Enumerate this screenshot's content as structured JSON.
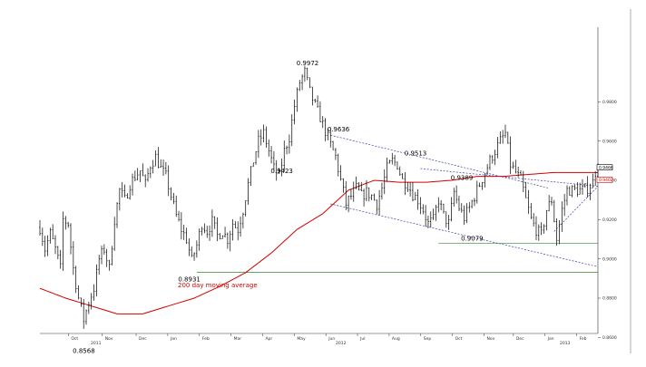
{
  "chart_data": {
    "type": "line",
    "title": "",
    "xlabel": "",
    "ylabel": "",
    "ylim": [
      0.862,
      1.018
    ],
    "y_ticks": [
      "0.9800",
      "0.9600",
      "0.9400",
      "0.9200",
      "0.9000",
      "0.8800",
      "0.8600"
    ],
    "y_tick_values": [
      0.98,
      0.96,
      0.94,
      0.92,
      0.9,
      0.88,
      0.86
    ],
    "month_labels": [
      "Oct",
      "Nov",
      "Dec",
      "Jan",
      "Feb",
      "Mar",
      "Apr",
      "May",
      "Jun",
      "Jul",
      "Aug",
      "Sep",
      "Oct",
      "Nov",
      "Dec",
      "Jan",
      "Feb"
    ],
    "year_labels": [
      "2011",
      "2012",
      "2013"
    ],
    "price_anchors": {
      "x": [
        0,
        2,
        4,
        6,
        8,
        9,
        11,
        13,
        15,
        17,
        19,
        21,
        23,
        25,
        27,
        29,
        31,
        33,
        35,
        37,
        39,
        41,
        43,
        45,
        47,
        49,
        51,
        53,
        55,
        57,
        59,
        61,
        63,
        65,
        67,
        69,
        71,
        73,
        75,
        77,
        79,
        81,
        83,
        85,
        87,
        89,
        91,
        93,
        95,
        97,
        99,
        101,
        103,
        105,
        107,
        109,
        111,
        113,
        115,
        117,
        119,
        121,
        123,
        125,
        127,
        129,
        131,
        133,
        135,
        137,
        139,
        141,
        143,
        145,
        147,
        149,
        151,
        153,
        155,
        157,
        159,
        161,
        163,
        165,
        167,
        169,
        171,
        173,
        175,
        177,
        179,
        181,
        183,
        185,
        187,
        189,
        191,
        193,
        195,
        197,
        199,
        201,
        203,
        205,
        207,
        209,
        211,
        213,
        215,
        217
      ],
      "y": [
        0.916,
        0.905,
        0.913,
        0.905,
        0.895,
        0.92,
        0.918,
        0.895,
        0.88,
        0.869,
        0.878,
        0.885,
        0.9,
        0.905,
        0.895,
        0.92,
        0.935,
        0.93,
        0.938,
        0.942,
        0.945,
        0.938,
        0.948,
        0.952,
        0.946,
        0.942,
        0.932,
        0.922,
        0.915,
        0.91,
        0.899,
        0.907,
        0.918,
        0.914,
        0.919,
        0.912,
        0.914,
        0.91,
        0.918,
        0.915,
        0.925,
        0.938,
        0.95,
        0.96,
        0.964,
        0.955,
        0.946,
        0.942,
        0.955,
        0.962,
        0.978,
        0.99,
        0.995,
        0.985,
        0.978,
        0.972,
        0.965,
        0.958,
        0.952,
        0.94,
        0.928,
        0.932,
        0.936,
        0.932,
        0.934,
        0.932,
        0.928,
        0.936,
        0.946,
        0.95,
        0.948,
        0.94,
        0.938,
        0.933,
        0.93,
        0.925,
        0.918,
        0.92,
        0.93,
        0.922,
        0.918,
        0.934,
        0.926,
        0.921,
        0.926,
        0.932,
        0.938,
        0.944,
        0.95,
        0.955,
        0.96,
        0.964,
        0.948,
        0.944,
        0.94,
        0.93,
        0.92,
        0.915,
        0.912,
        0.925,
        0.93,
        0.91,
        0.925,
        0.935,
        0.935,
        0.935,
        0.935,
        0.936,
        0.939,
        0.95
      ]
    },
    "ma200_anchors": {
      "x": [
        0,
        10,
        20,
        30,
        40,
        50,
        60,
        70,
        80,
        90,
        100,
        110,
        120,
        130,
        140,
        150,
        160,
        170,
        180,
        190,
        200,
        210,
        217
      ],
      "y": [
        0.885,
        0.88,
        0.876,
        0.872,
        0.872,
        0.876,
        0.88,
        0.886,
        0.893,
        0.903,
        0.915,
        0.923,
        0.935,
        0.94,
        0.939,
        0.939,
        0.94,
        0.942,
        0.942,
        0.943,
        0.944,
        0.944,
        0.944
      ]
    },
    "annotations": [
      {
        "label": "0.9972",
        "x": 104,
        "y": 0.9972
      },
      {
        "label": "0.9636",
        "x": 116,
        "y": 0.9636
      },
      {
        "label": "0.9513",
        "x": 146,
        "y": 0.9513
      },
      {
        "label": "0.9423",
        "x": 94,
        "y": 0.9423
      },
      {
        "label": "0.9389",
        "x": 164,
        "y": 0.9389
      },
      {
        "label": "0.9079",
        "x": 168,
        "y": 0.9079
      },
      {
        "label": "0.8931",
        "x": 58,
        "y": 0.8931
      },
      {
        "label": "0.8568",
        "x": 17,
        "y": 0.8568
      }
    ],
    "trendlines": [
      {
        "x": [
          113,
          198
        ],
        "y": [
          0.963,
          0.936
        ],
        "color": "#3c3cb4",
        "dash": true
      },
      {
        "x": [
          113,
          217
        ],
        "y": [
          0.928,
          0.896
        ],
        "color": "#3c3cb4",
        "dash": true
      },
      {
        "x": [
          148,
          217
        ],
        "y": [
          0.946,
          0.937
        ],
        "color": "#3c3cb4",
        "dash": true
      },
      {
        "x": [
          200,
          217
        ],
        "y": [
          0.914,
          0.937
        ],
        "color": "#3c3cb4",
        "dash": true
      },
      {
        "x": [
          61,
          217
        ],
        "y": [
          0.8931,
          0.8931
        ],
        "color": "#2e8b2e",
        "dash": false
      },
      {
        "x": [
          155,
          217
        ],
        "y": [
          0.9079,
          0.9079
        ],
        "color": "#2e8b2e",
        "dash": false
      }
    ],
    "ma_label": "200 day moving average",
    "last_price_badges": [
      "0.9466",
      "0.9402"
    ],
    "colors": {
      "price": "#000000",
      "ma200": "#d40000",
      "channel": "#3c3cb4",
      "support": "#2e8b2e"
    },
    "grid": false
  }
}
